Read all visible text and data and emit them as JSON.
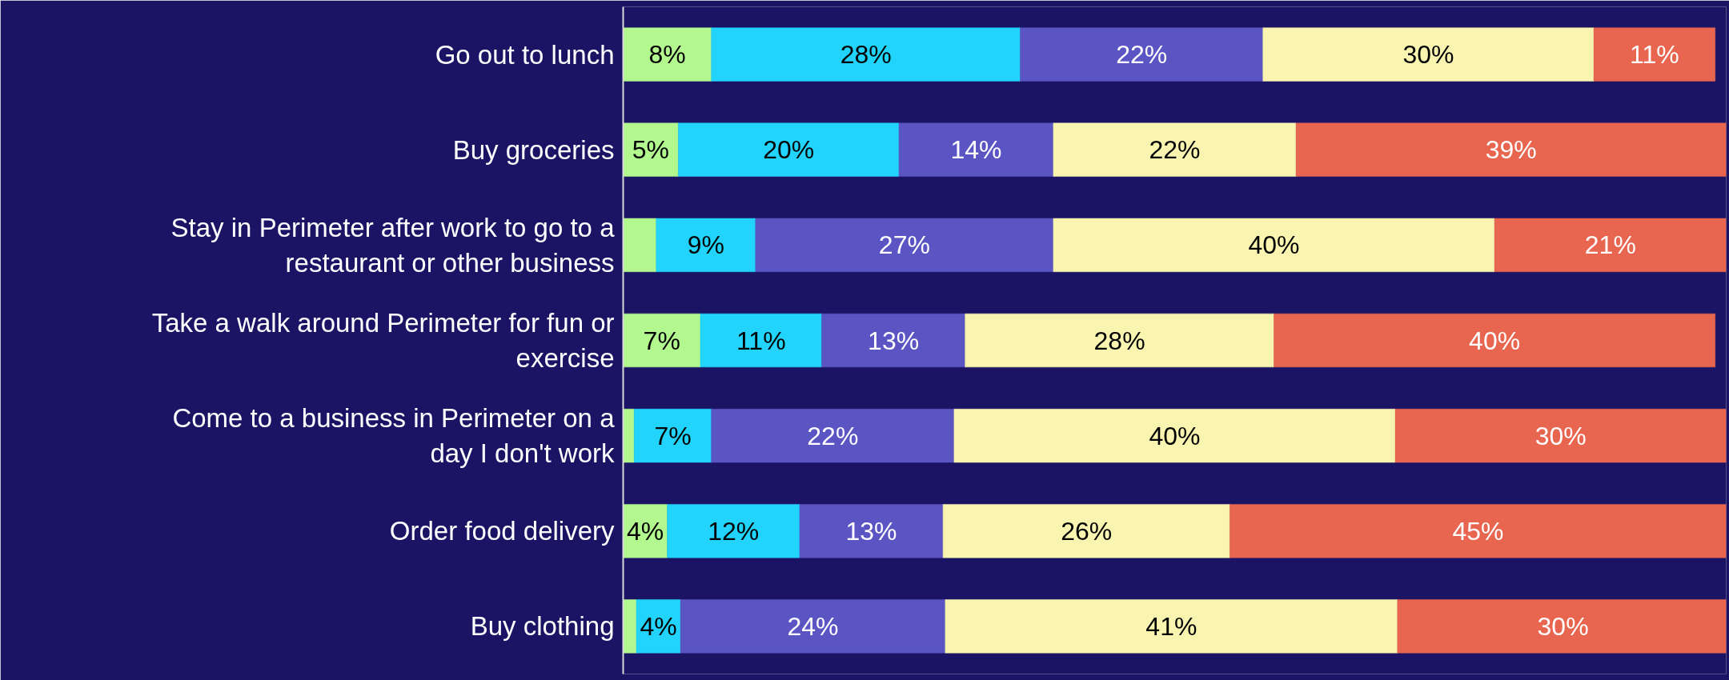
{
  "chart_data": {
    "type": "bar",
    "orientation": "horizontal",
    "stacked": true,
    "categories": [
      "Go out to lunch",
      "Buy groceries",
      "Stay in Perimeter after work to go to a restaurant or other business",
      "Take a walk around Perimeter for fun or exercise",
      "Come to a business in Perimeter on a day I don't work",
      "Order food delivery",
      "Buy clothing"
    ],
    "series": [
      {
        "color": "#b3f78f",
        "values": [
          8,
          5,
          3,
          7,
          1,
          4,
          1.2
        ],
        "value_labels": [
          "8%",
          "5%",
          null,
          "7%",
          null,
          "4%",
          null
        ]
      },
      {
        "color": "#22d3fb",
        "values": [
          28,
          20,
          9,
          11,
          7,
          12,
          4
        ],
        "value_labels": [
          "28%",
          "20%",
          "9%",
          "11%",
          "7%",
          "12%",
          "4%"
        ]
      },
      {
        "color": "#5b55c4",
        "values": [
          22,
          14,
          27,
          13,
          22,
          13,
          24
        ],
        "value_labels": [
          "22%",
          "14%",
          "27%",
          "13%",
          "22%",
          "13%",
          "24%"
        ]
      },
      {
        "color": "#f9f5b0",
        "values": [
          30,
          22,
          40,
          28,
          40,
          26,
          41
        ],
        "value_labels": [
          "30%",
          "22%",
          "40%",
          "28%",
          "40%",
          "26%",
          "41%"
        ]
      },
      {
        "color": "#e86550",
        "values": [
          11,
          39,
          21,
          40,
          30,
          45,
          30
        ],
        "value_labels": [
          "11%",
          "39%",
          "21%",
          "40%",
          "30%",
          "45%",
          "30%"
        ]
      }
    ],
    "xlim": [
      0,
      100
    ],
    "tick_labels": "y",
    "grid": false,
    "data_labels": true
  }
}
